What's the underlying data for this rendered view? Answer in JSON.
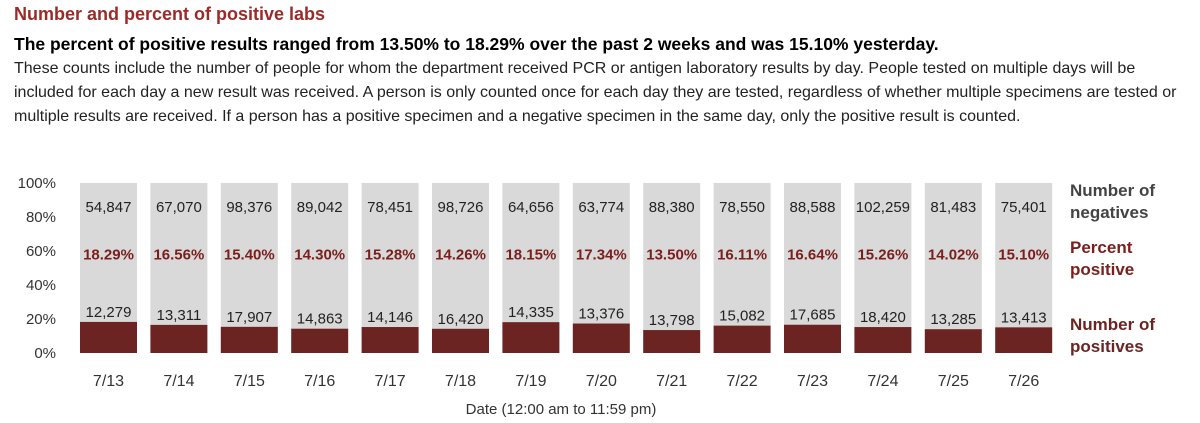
{
  "header": {
    "title": "Number and percent of positive labs",
    "subtitle": "The percent of positive results ranged from 13.50% to 18.29% over the past 2 weeks and was 15.10% yesterday.",
    "description": "These counts include the number of people for whom the department received PCR or antigen laboratory results by day. People tested on multiple days will be included for each day a new result was received. A person is only counted once for each day they are tested, regardless of whether multiple specimens are tested or multiple results are received. If a person has a positive specimen and a negative specimen in the same day, only the positive result is counted."
  },
  "colors": {
    "positive": "#6b2422",
    "negative": "#d9d9d9",
    "title": "#9b2b28",
    "percent_label": "#7a1f1c"
  },
  "chart_data": {
    "type": "bar",
    "stacked": "100%",
    "categories": [
      "7/13",
      "7/14",
      "7/15",
      "7/16",
      "7/17",
      "7/18",
      "7/19",
      "7/20",
      "7/21",
      "7/22",
      "7/23",
      "7/24",
      "7/25",
      "7/26"
    ],
    "series": [
      {
        "name": "Number of positives",
        "values": [
          12279,
          13311,
          17907,
          14863,
          14146,
          16420,
          14335,
          13376,
          13798,
          15082,
          17685,
          18420,
          13285,
          13413
        ]
      },
      {
        "name": "Number of negatives",
        "values": [
          54847,
          67070,
          98376,
          89042,
          78451,
          98726,
          64656,
          63774,
          88380,
          78550,
          88588,
          102259,
          81483,
          75401
        ]
      }
    ],
    "positive_labels": [
      "12,279",
      "13,311",
      "17,907",
      "14,863",
      "14,146",
      "16,420",
      "14,335",
      "13,376",
      "13,798",
      "15,082",
      "17,685",
      "18,420",
      "13,285",
      "13,413"
    ],
    "negative_labels": [
      "54,847",
      "67,070",
      "98,376",
      "89,042",
      "78,451",
      "98,726",
      "64,656",
      "63,774",
      "88,380",
      "78,550",
      "88,588",
      "102,259",
      "81,483",
      "75,401"
    ],
    "percent_positive": [
      18.29,
      16.56,
      15.4,
      14.3,
      15.28,
      14.26,
      18.15,
      17.34,
      13.5,
      16.11,
      16.64,
      15.26,
      14.02,
      15.1
    ],
    "percent_labels": [
      "18.29%",
      "16.56%",
      "15.40%",
      "14.30%",
      "15.28%",
      "14.26%",
      "18.15%",
      "17.34%",
      "13.50%",
      "16.11%",
      "16.64%",
      "15.26%",
      "14.02%",
      "15.10%"
    ],
    "yticks": [
      "0%",
      "20%",
      "40%",
      "60%",
      "80%",
      "100%"
    ],
    "ylim": [
      0,
      100
    ],
    "xlabel": "Date (12:00 am to 11:59 pm)",
    "legend": {
      "negatives": [
        "Number of",
        "negatives"
      ],
      "percent": [
        "Percent",
        "positive"
      ],
      "positives": [
        "Number of",
        "positives"
      ]
    },
    "legend_position": "right"
  }
}
